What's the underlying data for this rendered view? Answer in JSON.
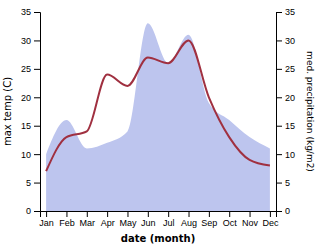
{
  "chart_data": {
    "type": "line",
    "xlabel": "date (month)",
    "ylabel": "max temp (C)",
    "y2label": "med. precipitation (kg/m2)",
    "categories": [
      "Jan",
      "Feb",
      "Mar",
      "Apr",
      "May",
      "Jun",
      "Jul",
      "Aug",
      "Sep",
      "Oct",
      "Nov",
      "Dec"
    ],
    "series": [
      {
        "type": "line",
        "color": "#a03040",
        "values": [
          7,
          13,
          14,
          24,
          22,
          27,
          26,
          30,
          20,
          13,
          9,
          8
        ]
      },
      {
        "type": "area",
        "axis": "y2",
        "color": "#bdc5ee",
        "values": [
          10,
          16,
          11,
          12,
          14,
          33,
          26,
          31,
          19,
          16,
          13,
          11
        ]
      }
    ],
    "ylim": [
      0,
      35
    ],
    "yticks": [
      0,
      5,
      10,
      15,
      20,
      25,
      30,
      35
    ],
    "y2lim": [
      0,
      35
    ],
    "y2ticks": [
      0,
      5,
      10,
      15,
      20,
      25,
      30,
      35
    ],
    "grid": false
  }
}
